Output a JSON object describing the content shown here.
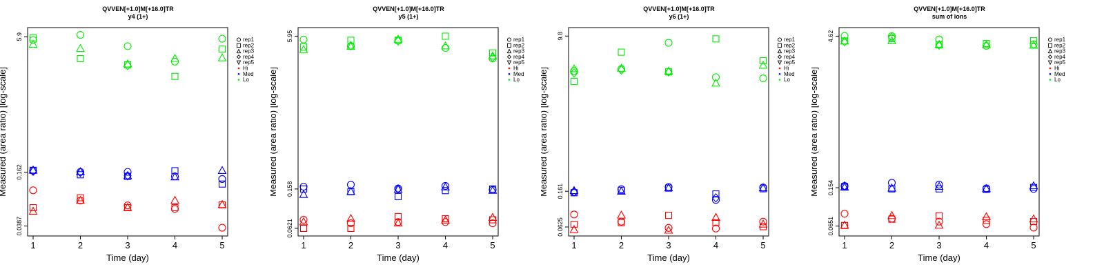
{
  "chart_data": [
    {
      "type": "scatter",
      "title": "QVVEN[+1.0]M[+16.0]TR",
      "subtitle": "y4 (1+)",
      "xlabel": "Time (day)",
      "ylabel": "Measured (area ratio) [log-scale]",
      "x_ticks": [
        "1",
        "2",
        "3",
        "4",
        "5"
      ],
      "y_ticks": [
        {
          "label": "0.0387",
          "value": 0.0387
        },
        {
          "label": "0.162",
          "value": 0.162
        },
        {
          "label": "5.9",
          "value": 5.9
        }
      ],
      "ylim": [
        0.0344,
        6.5
      ],
      "y_scale": "log",
      "series": [
        {
          "group": "Lo",
          "rep": "rep1",
          "x": [
            1,
            2,
            3,
            4,
            5
          ],
          "y": [
            5.4,
            6.2,
            4.6,
            3.05,
            5.6
          ]
        },
        {
          "group": "Lo",
          "rep": "rep2",
          "x": [
            1,
            2,
            3,
            4,
            5
          ],
          "y": [
            5.75,
            3.3,
            2.8,
            2.06,
            4.25
          ]
        },
        {
          "group": "Lo",
          "rep": "rep3",
          "x": [
            1,
            2,
            3,
            4,
            5
          ],
          "y": [
            4.8,
            4.3,
            2.85,
            3.3,
            3.35
          ]
        },
        {
          "group": "Lo",
          "rep": "rep4",
          "x": [
            1,
            2,
            3,
            4,
            5
          ],
          "y": [
            null,
            null,
            2.75,
            null,
            null
          ]
        },
        {
          "group": "Med",
          "rep": "rep1",
          "x": [
            1,
            2,
            3,
            4,
            5
          ],
          "y": [
            0.168,
            0.163,
            0.163,
            0.145,
            0.135
          ]
        },
        {
          "group": "Med",
          "rep": "rep2",
          "x": [
            1,
            2,
            3,
            4,
            5
          ],
          "y": [
            0.17,
            0.151,
            0.145,
            0.168,
            0.118
          ]
        },
        {
          "group": "Med",
          "rep": "rep3",
          "x": [
            1,
            2,
            3,
            4,
            5
          ],
          "y": [
            0.17,
            0.163,
            0.146,
            0.142,
            0.168
          ]
        },
        {
          "group": "Med",
          "rep": "rep4",
          "x": [
            1,
            2,
            3,
            4,
            5
          ],
          "y": [
            0.166,
            0.161,
            0.147,
            null,
            null
          ]
        },
        {
          "group": "Hi",
          "rep": "rep1",
          "x": [
            1,
            2,
            3,
            4,
            5
          ],
          "y": [
            0.1,
            0.076,
            0.067,
            0.061,
            0.037
          ]
        },
        {
          "group": "Hi",
          "rep": "rep2",
          "x": [
            1,
            2,
            3,
            4,
            5
          ],
          "y": [
            0.063,
            0.082,
            0.063,
            0.063,
            0.068
          ]
        },
        {
          "group": "Hi",
          "rep": "rep3",
          "x": [
            1,
            2,
            3,
            4,
            5
          ],
          "y": [
            0.057,
            0.076,
            0.063,
            0.076,
            0.068
          ]
        }
      ]
    },
    {
      "type": "scatter",
      "title": "QVVEN[+1.0]M[+16.0]TR",
      "subtitle": "y5 (1+)",
      "xlabel": "Time (day)",
      "ylabel": "Measured (area ratio) [log-scale]",
      "x_ticks": [
        "1",
        "2",
        "3",
        "4",
        "5"
      ],
      "y_ticks": [
        {
          "label": "0.0621",
          "value": 0.0621
        },
        {
          "label": "0.158",
          "value": 0.158
        },
        {
          "label": "5.95",
          "value": 5.95
        }
      ],
      "ylim": [
        0.059,
        6.4
      ],
      "y_scale": "log",
      "series": [
        {
          "group": "Lo",
          "rep": "rep1",
          "x": [
            1,
            2,
            3,
            4,
            5
          ],
          "y": [
            5.5,
            4.7,
            5.4,
            4.5,
            3.5
          ]
        },
        {
          "group": "Lo",
          "rep": "rep2",
          "x": [
            1,
            2,
            3,
            4,
            5
          ],
          "y": [
            4.6,
            5.4,
            5.4,
            5.95,
            4.0
          ]
        },
        {
          "group": "Lo",
          "rep": "rep3",
          "x": [
            1,
            2,
            3,
            4,
            5
          ],
          "y": [
            4.3,
            4.65,
            5.5,
            4.7,
            3.7
          ]
        },
        {
          "group": "Lo",
          "rep": "rep4",
          "x": [
            1,
            2,
            3,
            4,
            5
          ],
          "y": [
            null,
            4.75,
            5.3,
            null,
            3.6
          ]
        },
        {
          "group": "Med",
          "rep": "rep1",
          "x": [
            1,
            2,
            3,
            4,
            5
          ],
          "y": [
            0.167,
            0.175,
            0.16,
            0.17,
            0.155
          ]
        },
        {
          "group": "Med",
          "rep": "rep2",
          "x": [
            1,
            2,
            3,
            4,
            5
          ],
          "y": [
            0.158,
            0.148,
            0.132,
            0.152,
            0.158
          ]
        },
        {
          "group": "Med",
          "rep": "rep3",
          "x": [
            1,
            2,
            3,
            4,
            5
          ],
          "y": [
            0.138,
            0.148,
            0.156,
            0.165,
            0.152
          ]
        },
        {
          "group": "Med",
          "rep": "rep4",
          "x": [
            1,
            2,
            3,
            4,
            5
          ],
          "y": [
            null,
            null,
            0.158,
            null,
            null
          ]
        },
        {
          "group": "Hi",
          "rep": "rep1",
          "x": [
            1,
            2,
            3,
            4,
            5
          ],
          "y": [
            0.076,
            0.07,
            0.072,
            0.072,
            0.07
          ]
        },
        {
          "group": "Hi",
          "rep": "rep2",
          "x": [
            1,
            2,
            3,
            4,
            5
          ],
          "y": [
            0.062,
            0.062,
            0.082,
            0.078,
            0.076
          ]
        },
        {
          "group": "Hi",
          "rep": "rep3",
          "x": [
            1,
            2,
            3,
            4,
            5
          ],
          "y": [
            0.072,
            0.078,
            0.07,
            0.075,
            0.08
          ]
        }
      ]
    },
    {
      "type": "scatter",
      "title": "QVVEN[+1.0]M[+16.0]TR",
      "subtitle": "y6 (1+)",
      "xlabel": "Time (day)",
      "ylabel": "Measured (area ratio) [log-scale]",
      "x_ticks": [
        "1",
        "2",
        "3",
        "4",
        "5"
      ],
      "y_ticks": [
        {
          "label": "0.0625",
          "value": 0.0625
        },
        {
          "label": "0.161",
          "value": 0.161
        },
        {
          "label": "9.8",
          "value": 9.8
        }
      ],
      "ylim": [
        0.057,
        10.6
      ],
      "y_scale": "log",
      "series": [
        {
          "group": "Lo",
          "rep": "rep1",
          "x": [
            1,
            2,
            3,
            4,
            5
          ],
          "y": [
            3.9,
            4.1,
            8.2,
            3.3,
            3.2
          ]
        },
        {
          "group": "Lo",
          "rep": "rep2",
          "x": [
            1,
            2,
            3,
            4,
            5
          ],
          "y": [
            2.95,
            6.4,
            3.8,
            9.1,
            5.1
          ]
        },
        {
          "group": "Lo",
          "rep": "rep3",
          "x": [
            1,
            2,
            3,
            4,
            5
          ],
          "y": [
            4.1,
            4.15,
            3.85,
            2.8,
            4.5
          ]
        },
        {
          "group": "Lo",
          "rep": "rep4",
          "x": [
            1,
            2,
            3,
            4,
            5
          ],
          "y": [
            3.7,
            4.0,
            3.8,
            null,
            null
          ]
        },
        {
          "group": "Med",
          "rep": "rep1",
          "x": [
            1,
            2,
            3,
            4,
            5
          ],
          "y": [
            0.157,
            0.17,
            0.18,
            0.128,
            0.178
          ]
        },
        {
          "group": "Med",
          "rep": "rep2",
          "x": [
            1,
            2,
            3,
            4,
            5
          ],
          "y": [
            0.155,
            0.165,
            0.175,
            0.15,
            0.172
          ]
        },
        {
          "group": "Med",
          "rep": "rep3",
          "x": [
            1,
            2,
            3,
            4,
            5
          ],
          "y": [
            0.163,
            0.16,
            0.175,
            null,
            0.175
          ]
        },
        {
          "group": "Med",
          "rep": "rep4",
          "x": [
            1,
            2,
            3,
            4,
            5
          ],
          "y": [
            0.158,
            null,
            null,
            0.135,
            null
          ]
        },
        {
          "group": "Hi",
          "rep": "rep1",
          "x": [
            1,
            2,
            3,
            4,
            5
          ],
          "y": [
            0.087,
            0.072,
            0.061,
            0.06,
            0.072
          ]
        },
        {
          "group": "Hi",
          "rep": "rep2",
          "x": [
            1,
            2,
            3,
            4,
            5
          ],
          "y": [
            0.067,
            0.07,
            0.085,
            0.07,
            0.063
          ]
        },
        {
          "group": "Hi",
          "rep": "rep3",
          "x": [
            1,
            2,
            3,
            4,
            5
          ],
          "y": [
            0.058,
            0.085,
            0.057,
            0.08,
            0.067
          ]
        }
      ]
    },
    {
      "type": "scatter",
      "title": "QVVEN[+1.0]M[+16.0]TR",
      "subtitle": "sum of ions",
      "xlabel": "Time (day)",
      "ylabel": "Measured (area ratio) [log-scale]",
      "x_ticks": [
        "1",
        "2",
        "3",
        "4",
        "5"
      ],
      "y_ticks": [
        {
          "label": "0.0651",
          "value": 0.0651
        },
        {
          "label": "0.154",
          "value": 0.154
        },
        {
          "label": "4.62",
          "value": 4.62
        }
      ],
      "ylim": [
        0.059,
        4.95
      ],
      "y_scale": "log",
      "series": [
        {
          "group": "Lo",
          "rep": "rep1",
          "x": [
            1,
            2,
            3,
            4,
            5
          ],
          "y": [
            4.65,
            4.62,
            4.3,
            3.72,
            3.85
          ]
        },
        {
          "group": "Lo",
          "rep": "rep2",
          "x": [
            1,
            2,
            3,
            4,
            5
          ],
          "y": [
            4.15,
            4.38,
            3.8,
            3.92,
            4.18
          ]
        },
        {
          "group": "Lo",
          "rep": "rep3",
          "x": [
            1,
            2,
            3,
            4,
            5
          ],
          "y": [
            4.12,
            4.15,
            3.82,
            3.78,
            3.75
          ]
        },
        {
          "group": "Lo",
          "rep": "rep4",
          "x": [
            1,
            2,
            3,
            4,
            5
          ],
          "y": [
            4.08,
            4.5,
            3.78,
            null,
            null
          ]
        },
        {
          "group": "Med",
          "rep": "rep1",
          "x": [
            1,
            2,
            3,
            4,
            5
          ],
          "y": [
            0.16,
            0.172,
            0.165,
            0.152,
            0.15
          ]
        },
        {
          "group": "Med",
          "rep": "rep2",
          "x": [
            1,
            2,
            3,
            4,
            5
          ],
          "y": [
            0.158,
            0.15,
            0.15,
            0.148,
            0.155
          ]
        },
        {
          "group": "Med",
          "rep": "rep3",
          "x": [
            1,
            2,
            3,
            4,
            5
          ],
          "y": [
            0.155,
            0.152,
            0.158,
            0.15,
            0.16
          ]
        },
        {
          "group": "Med",
          "rep": "rep4",
          "x": [
            1,
            2,
            3,
            4,
            5
          ],
          "y": [
            0.16,
            null,
            null,
            null,
            null
          ]
        },
        {
          "group": "Hi",
          "rep": "rep1",
          "x": [
            1,
            2,
            3,
            4,
            5
          ],
          "y": [
            0.086,
            0.077,
            0.072,
            0.068,
            0.063
          ]
        },
        {
          "group": "Hi",
          "rep": "rep2",
          "x": [
            1,
            2,
            3,
            4,
            5
          ],
          "y": [
            0.066,
            0.076,
            0.082,
            0.074,
            0.072
          ]
        },
        {
          "group": "Hi",
          "rep": "rep3",
          "x": [
            1,
            2,
            3,
            4,
            5
          ],
          "y": [
            0.066,
            0.082,
            0.066,
            0.08,
            0.076
          ]
        }
      ]
    }
  ],
  "legend": {
    "entries": [
      {
        "label": "rep1",
        "shape": "circle"
      },
      {
        "label": "rep2",
        "shape": "square"
      },
      {
        "label": "rep3",
        "shape": "triangle-up"
      },
      {
        "label": "rep4",
        "shape": "diamond"
      },
      {
        "label": "rep5",
        "shape": "triangle-down"
      },
      {
        "label": "Hi",
        "shape": "dot",
        "color": "#ff0000"
      },
      {
        "label": "Med",
        "shape": "dot",
        "color": "#0000ff"
      },
      {
        "label": "Lo",
        "shape": "dot",
        "color": "#00ee00"
      }
    ],
    "placement": "right"
  },
  "colors": {
    "Hi": "#ff0000",
    "Med": "#0000ff",
    "Lo": "#00ee00",
    "axis": "#000000"
  }
}
